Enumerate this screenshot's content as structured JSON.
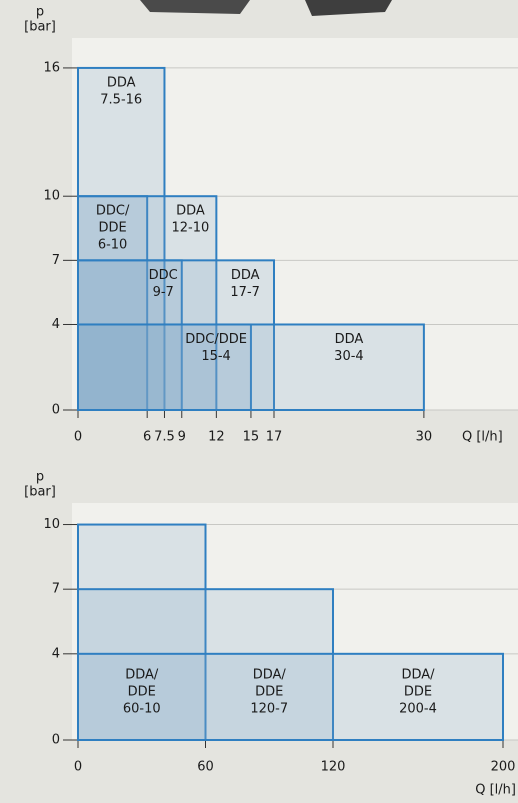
{
  "chart_data": [
    {
      "type": "rectangle",
      "y_label": [
        "p",
        "[bar]"
      ],
      "x_label": "Q [l/h]",
      "xlim": [
        0,
        34
      ],
      "ylim": [
        0,
        17.4
      ],
      "xticks": [
        0,
        6,
        7.5,
        9,
        12,
        15,
        17,
        30
      ],
      "yticks": [
        0,
        4,
        7,
        10,
        16
      ],
      "grid": true,
      "color": "#2f7fc1",
      "fill": "#7fa6c8",
      "ranges": [
        {
          "label": [
            "DDA",
            "7.5-16"
          ],
          "q": 7.5,
          "p": 16
        },
        {
          "label": [
            "DDC/",
            "DDE",
            "6-10"
          ],
          "q": 6,
          "p": 10
        },
        {
          "label": [
            "DDA",
            "12-10"
          ],
          "q": 12,
          "p": 10
        },
        {
          "label": [
            "DDC",
            "9-7"
          ],
          "q": 9,
          "p": 7
        },
        {
          "label": [
            "DDA",
            "17-7"
          ],
          "q": 17,
          "p": 7
        },
        {
          "label": [
            "DDC/DDE",
            "15-4"
          ],
          "q": 15,
          "p": 4
        },
        {
          "label": [
            "DDA",
            "30-4"
          ],
          "q": 30,
          "p": 4
        }
      ]
    },
    {
      "type": "rectangle",
      "y_label": [
        "p",
        "[bar]"
      ],
      "x_label": "Q [l/h]",
      "xlim": [
        0,
        200
      ],
      "ylim": [
        0,
        11
      ],
      "xticks": [
        0,
        60,
        120,
        200
      ],
      "yticks": [
        0,
        4,
        7,
        10
      ],
      "grid": true,
      "color": "#2f7fc1",
      "fill": "#7fa6c8",
      "ranges": [
        {
          "label": [
            "DDA/",
            "DDE",
            "60-10"
          ],
          "q": 60,
          "p": 10
        },
        {
          "label": [
            "DDA/",
            "DDE",
            "120-7"
          ],
          "q": 120,
          "p": 7
        },
        {
          "label": [
            "DDA/",
            "DDE",
            "200-4"
          ],
          "q": 200,
          "p": 4
        }
      ]
    }
  ]
}
